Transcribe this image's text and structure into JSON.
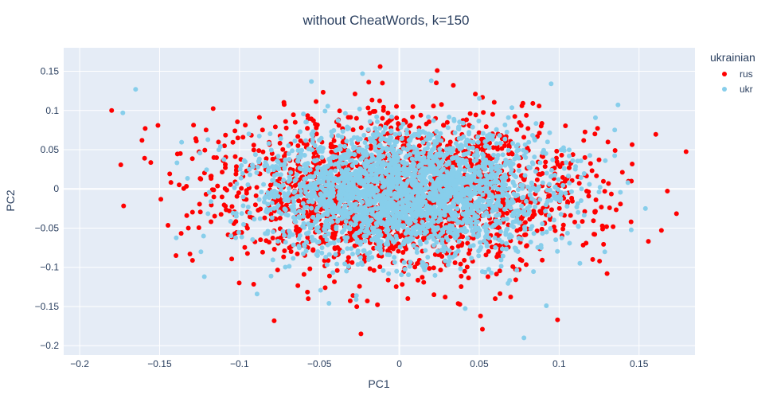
{
  "chart_data": {
    "type": "scatter",
    "title": "without CheatWords, k=150",
    "xlabel": "PC1",
    "ylabel": "PC2",
    "xlim": [
      -0.21,
      0.185
    ],
    "ylim": [
      -0.212,
      0.18
    ],
    "xticks": [
      -0.2,
      -0.15,
      -0.1,
      -0.05,
      0,
      0.05,
      0.1,
      0.15
    ],
    "xtick_labels": [
      "−0.2",
      "−0.15",
      "−0.1",
      "−0.05",
      "0",
      "0.05",
      "0.1",
      "0.15"
    ],
    "yticks": [
      0.15,
      0.1,
      0.05,
      0,
      -0.05,
      -0.1,
      -0.15,
      -0.2
    ],
    "ytick_labels": [
      "0.15",
      "0.1",
      "0.05",
      "0",
      "−0.05",
      "−0.1",
      "−0.15",
      "−0.2"
    ],
    "grid": true,
    "background": "#e5ecf6",
    "legend": {
      "title": "ukrainian",
      "placement": "right"
    },
    "series": [
      {
        "name": "rus",
        "color": "#ff0000",
        "cloud": {
          "center": [
            0.0,
            -0.005
          ],
          "spread": [
            0.055,
            0.048
          ],
          "count": 2200
        },
        "x": [
          -0.18,
          -0.159,
          -0.161,
          -0.151,
          -0.137,
          -0.127,
          -0.133,
          -0.132,
          -0.131,
          -0.029,
          -0.012,
          -0.024,
          -0.02,
          0.052,
          0.099,
          0.164,
          0.13,
          0.135,
          0.121,
          0.145,
          0.06,
          -0.057
        ],
        "y": [
          0.1,
          0.077,
          0.062,
          0.081,
          0.045,
          0.061,
          -0.034,
          -0.05,
          -0.083,
          -0.136,
          0.156,
          -0.185,
          -0.143,
          -0.179,
          -0.167,
          -0.053,
          -0.108,
          0.049,
          -0.09,
          -0.042,
          -0.14,
          -0.14
        ]
      },
      {
        "name": "ukr",
        "color": "#87ceeb",
        "cloud": {
          "center": [
            0.005,
            -0.005
          ],
          "spread": [
            0.045,
            0.04
          ],
          "count": 2600
        },
        "x": [
          -0.165,
          -0.173,
          -0.122,
          -0.089,
          -0.044,
          -0.027,
          0.02,
          0.095,
          0.078,
          0.154,
          0.092,
          -0.023,
          -0.055,
          0.113
        ],
        "y": [
          0.127,
          0.097,
          -0.112,
          -0.134,
          -0.146,
          -0.141,
          0.138,
          0.134,
          -0.19,
          -0.025,
          -0.149,
          0.147,
          0.137,
          -0.095
        ]
      }
    ]
  }
}
